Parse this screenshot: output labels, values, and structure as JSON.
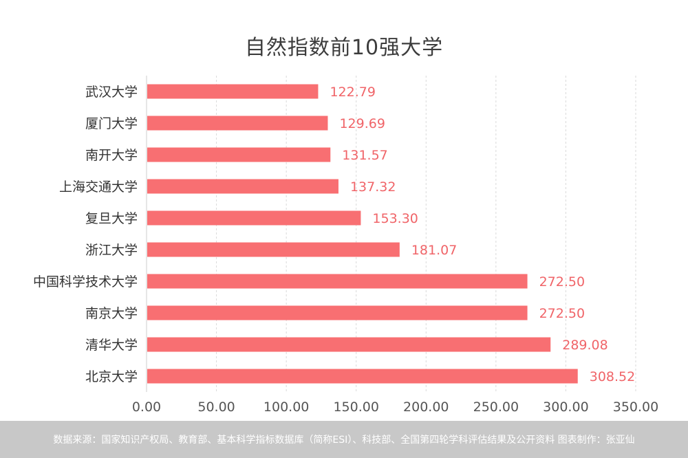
{
  "chart_data": {
    "type": "bar",
    "orientation": "horizontal",
    "title": "自然指数前10强大学",
    "categories": [
      "武汉大学",
      "厦门大学",
      "南开大学",
      "上海交通大学",
      "复旦大学",
      "浙江大学",
      "中国科学技术大学",
      "南京大学",
      "清华大学",
      "北京大学"
    ],
    "values": [
      122.79,
      129.69,
      131.57,
      137.32,
      153.3,
      181.07,
      272.5,
      272.5,
      289.08,
      308.52
    ],
    "value_labels": [
      "122.79",
      "129.69",
      "131.57",
      "137.32",
      "153.30",
      "181.07",
      "272.50",
      "272.50",
      "289.08",
      "308.52"
    ],
    "xticks": [
      "0.00",
      "50.00",
      "100.00",
      "150.00",
      "200.00",
      "250.00",
      "300.00",
      "350.00"
    ],
    "xlim": [
      0,
      350
    ],
    "grid": "vertical dashed",
    "legend": "none",
    "bar_color": "#f86f72",
    "label_color": "#f06468"
  },
  "footer": {
    "text": "数据来源：国家知识产权局、教育部、基本科学指标数据库（简称ESI）、科技部、全国第四轮学科评估结果及公开资料 图表制作：张亚仙"
  },
  "colors": {
    "footer_bg": "#c8c8c8",
    "axis": "#cccccc"
  }
}
